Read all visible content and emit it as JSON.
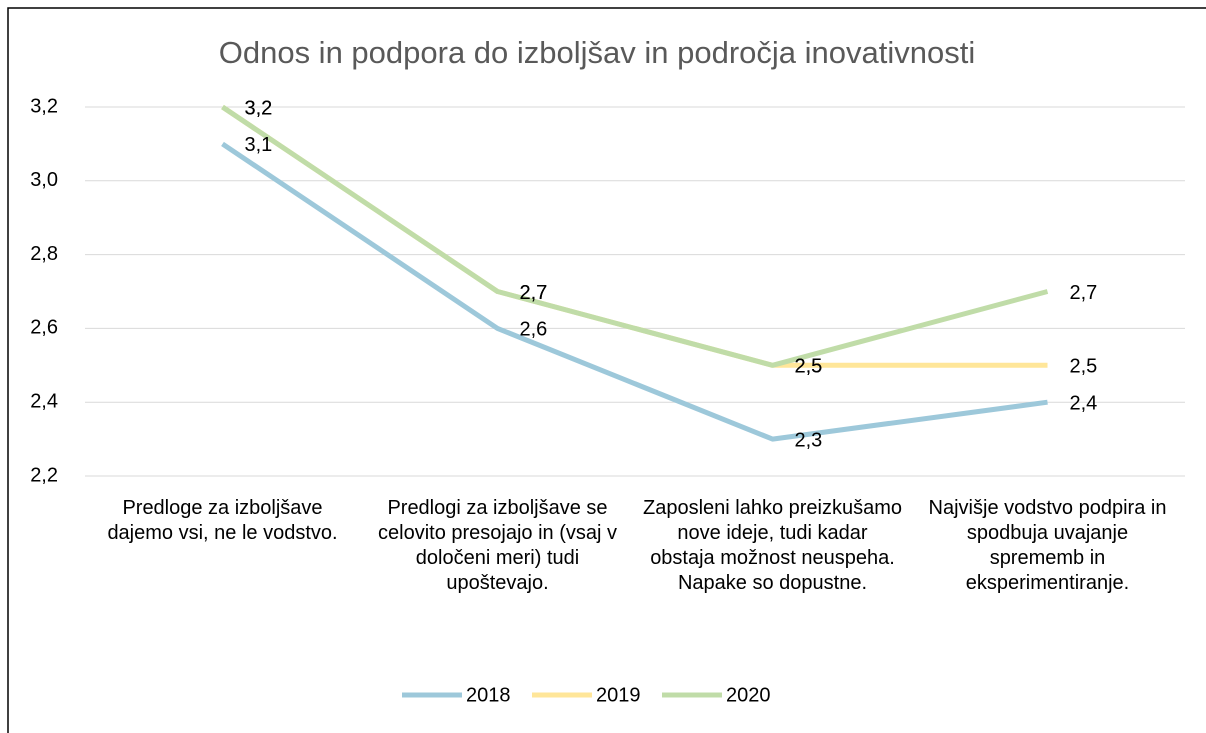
{
  "chart_data": {
    "type": "line",
    "title": "Odnos in podpora do izboljšav in področja inovativnosti",
    "categories": [
      "Predloge za izboljšave dajemo vsi, ne le vodstvo.",
      "Predlogi za izboljšave se celovito presojajo in (vsaj v določeni meri) tudi upoštevajo.",
      "Zaposleni lahko preizkušamo nove ideje, tudi kadar obstaja možnost neuspeha. Napake so dopustne.",
      "Najvišje vodstvo podpira in spodbuja uvajanje sprememb in eksperimentiranje."
    ],
    "series": [
      {
        "name": "2018",
        "color": "#9dc8da",
        "values": [
          3.1,
          2.6,
          2.3,
          2.4
        ],
        "value_labels": [
          "3,1",
          "2,6",
          "2,3",
          "2,4"
        ]
      },
      {
        "name": "2019",
        "color": "#ffe699",
        "values": [
          3.2,
          2.7,
          2.5,
          2.5
        ],
        "value_labels": [
          "3,2",
          "2,7",
          "2,5",
          "2,5"
        ]
      },
      {
        "name": "2020",
        "color": "#c0dca8",
        "values": [
          3.2,
          2.7,
          2.5,
          2.7
        ],
        "value_labels": [
          "3,2",
          "2,7",
          "2,5",
          "2,7"
        ]
      }
    ],
    "ylim": [
      2.2,
      3.2
    ],
    "yticks": [
      {
        "value": 2.2,
        "label": "2,2"
      },
      {
        "value": 2.4,
        "label": "2,4"
      },
      {
        "value": 2.6,
        "label": "2,6"
      },
      {
        "value": 2.8,
        "label": "2,8"
      },
      {
        "value": 3.0,
        "label": "3,0"
      },
      {
        "value": 3.2,
        "label": "3,2"
      }
    ],
    "grid": true,
    "legend": "bottom"
  }
}
